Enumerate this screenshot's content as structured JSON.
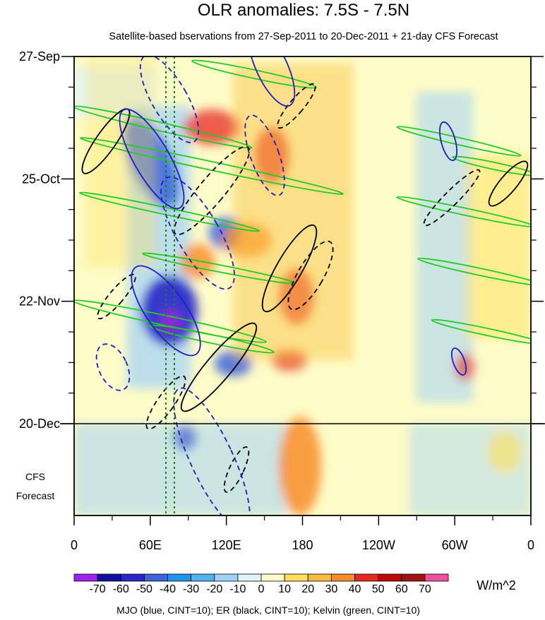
{
  "chart_data": {
    "type": "heatmap",
    "title": "OLR anomalies: 7.5S - 7.5N",
    "subtitle": "Satellite-based bservations from 27-Sep-2011 to 20-Dec-2011 + 21-day CFS Forecast",
    "x_ticks": [
      "0",
      "60E",
      "120E",
      "180",
      "120W",
      "60W",
      "0"
    ],
    "x_values": [
      0,
      60,
      120,
      180,
      240,
      300,
      360
    ],
    "y_ticks": [
      "27-Sep",
      "25-Oct",
      "22-Nov",
      "20-Dec"
    ],
    "y_days": [
      0,
      28,
      56,
      84
    ],
    "y_range_days": [
      0,
      105
    ],
    "x_range": [
      0,
      360
    ],
    "forecast_label": [
      "CFS",
      "Forecast"
    ],
    "colorbar": {
      "unit": "W/m^2",
      "labels": [
        "-70",
        "-60",
        "-50",
        "-40",
        "-30",
        "-20",
        "-10",
        "0",
        "10",
        "20",
        "30",
        "40",
        "50",
        "60",
        "70"
      ],
      "colors": [
        "#a020f0",
        "#1010a0",
        "#2828c8",
        "#3c64dc",
        "#1e96f0",
        "#50b4f0",
        "#a0d2f8",
        "#e0f4fc",
        "#fefcc8",
        "#ffe05a",
        "#fbbe3c",
        "#f88c28",
        "#e62820",
        "#c00a0a",
        "#a01414",
        "#f050a0"
      ]
    },
    "footer": "MJO (blue, CINT=10); ER (black, CINT=10); Kelvin (green, CINT=10)",
    "contours": {
      "mjo_color": "#1e1ec8",
      "er_color": "#000000",
      "kelvin_color": "#22cc22"
    }
  }
}
